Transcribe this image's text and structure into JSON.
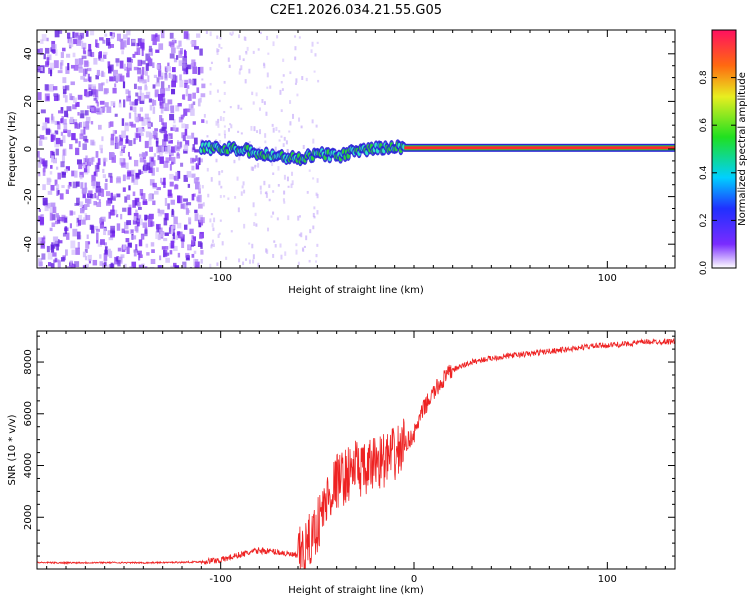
{
  "title": "C2E1.2026.034.21.55.G05",
  "colors": {
    "snr_line": "#ee2222",
    "carrier": "#ff2a2a",
    "noise_dots": "#8a3cf0",
    "background": "#ffffff"
  },
  "chart_data": [
    {
      "type": "heatmap",
      "name": "spectrogram",
      "title": "C2E1.2026.034.21.55.G05",
      "xlabel": "Height of straight line (km)",
      "ylabel": "Frequency (Hz)",
      "xlim": [
        -195,
        135
      ],
      "ylim": [
        -50,
        50
      ],
      "x_ticks": [
        -100,
        100
      ],
      "x_tick_labels": [
        "-100",
        "100"
      ],
      "y_ticks": [
        -40,
        -20,
        0,
        20,
        40
      ],
      "y_tick_labels": [
        "-40",
        "-20",
        "0",
        "20",
        "40"
      ],
      "carrier_track": {
        "x": [
          -110,
          -100,
          -90,
          -80,
          -70,
          -60,
          -50,
          -40,
          -30,
          -20,
          -10,
          0,
          135
        ],
        "y": [
          1,
          0,
          0,
          -2,
          -3,
          -4,
          -2,
          -3,
          -1,
          0,
          1,
          0.5,
          0.5
        ]
      },
      "noise_region_x": [
        -195,
        -110
      ],
      "colorbar": {
        "label": "Normalized spectral amplitude",
        "range": [
          0,
          1
        ],
        "ticks": [
          0.0,
          0.2,
          0.4,
          0.6,
          0.8
        ],
        "tick_labels": [
          "0.0",
          "0.2",
          "0.4",
          "0.6",
          "0.8"
        ]
      }
    },
    {
      "type": "line",
      "name": "snr",
      "xlabel": "Height of straight line (km)",
      "ylabel": "SNR (10 * v/v)",
      "xlim": [
        -195,
        135
      ],
      "ylim": [
        0,
        9200
      ],
      "x_ticks": [
        -100,
        0,
        100
      ],
      "x_tick_labels": [
        "-100",
        "0",
        "100"
      ],
      "y_ticks": [
        2000,
        4000,
        6000,
        8000
      ],
      "y_tick_labels": [
        "2000",
        "4000",
        "6000",
        "8000"
      ],
      "series": [
        {
          "name": "SNR",
          "x": [
            -195,
            -180,
            -160,
            -140,
            -120,
            -110,
            -100,
            -90,
            -80,
            -70,
            -60,
            -55,
            -50,
            -45,
            -40,
            -35,
            -30,
            -25,
            -20,
            -15,
            -10,
            -5,
            0,
            5,
            10,
            15,
            20,
            30,
            40,
            50,
            60,
            70,
            80,
            90,
            100,
            110,
            120,
            135
          ],
          "y": [
            250,
            240,
            250,
            240,
            260,
            280,
            350,
            550,
            720,
            650,
            500,
            900,
            1700,
            2700,
            3400,
            3600,
            4000,
            3700,
            4200,
            4200,
            4400,
            4800,
            5200,
            6200,
            6800,
            7300,
            7700,
            8000,
            8150,
            8250,
            8320,
            8420,
            8500,
            8600,
            8650,
            8700,
            8780,
            8800
          ]
        }
      ]
    }
  ]
}
